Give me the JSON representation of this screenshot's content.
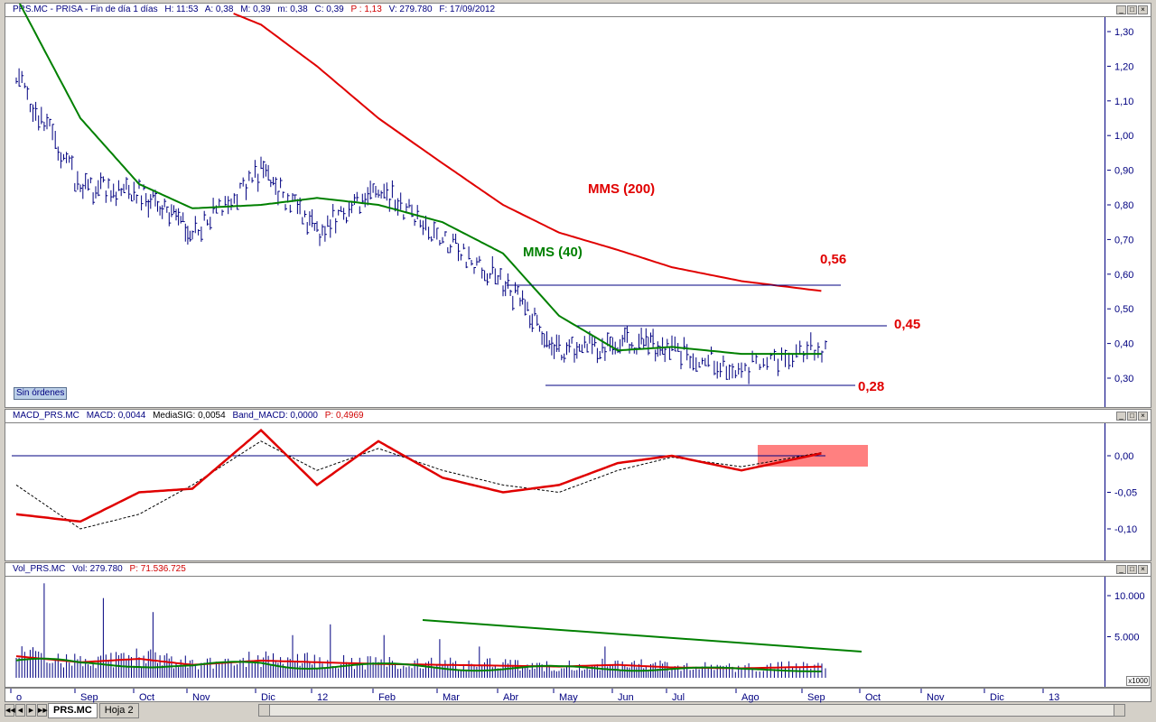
{
  "price_panel": {
    "header": {
      "symbol": "PRS.MC - PRISA - Fin de día 1 días",
      "time": "H: 11:53",
      "open": "A: 0,38",
      "high": "M: 0,39",
      "low": "m: 0,38",
      "close": "C: 0,39",
      "change": "P : 1,13",
      "volume": "V: 279.780",
      "date": "F: 17/09/2012"
    },
    "y_ticks": [
      "1,30",
      "1,20",
      "1,10",
      "1,00",
      "0,90",
      "0,80",
      "0,70",
      "0,60",
      "0,50",
      "0,40",
      "0,30"
    ],
    "annotations": {
      "mms200": "MMS (200)",
      "mms40": "MMS (40)",
      "level_056": "0,56",
      "level_045": "0,45",
      "level_028": "0,28"
    },
    "badge": "Sin órdenes"
  },
  "macd_panel": {
    "header": {
      "name": "MACD_PRS.MC",
      "macd": "MACD: 0,0044",
      "signal": "MediaSIG: 0,0054",
      "band": "Band_MACD: 0,0000",
      "p": "P: 0,4969"
    },
    "y_ticks": [
      "0,00",
      "-0,05",
      "-0,10"
    ]
  },
  "volume_panel": {
    "header": {
      "name": "Vol_PRS.MC",
      "vol": "Vol: 279.780",
      "p": "P: 71.536.725"
    },
    "y_ticks": [
      "10.000",
      "5.000"
    ],
    "scale_note": "x1000"
  },
  "time_axis": [
    "o",
    "Sep",
    "Oct",
    "Nov",
    "Dic",
    "12",
    "Feb",
    "Mar",
    "Abr",
    "May",
    "Jun",
    "Jul",
    "Ago",
    "Sep",
    "Oct",
    "Nov",
    "Dic",
    "13"
  ],
  "sheet_tabs": [
    "PRS.MC",
    "Hoja 2"
  ],
  "colors": {
    "price_bars": "#000080",
    "mms40": "#008000",
    "mms200": "#e00000",
    "macd": "#e00000",
    "signal": "#000000",
    "highlight": "#ff8080",
    "volume_trend": "#008000"
  },
  "chart_data": [
    {
      "type": "line",
      "title": "PRS.MC - PRISA",
      "x": [
        "o",
        "Sep",
        "Oct",
        "Nov",
        "Dic",
        "12",
        "Feb",
        "Mar",
        "Abr",
        "May",
        "Jun",
        "Jul",
        "Ago",
        "Sep"
      ],
      "series": [
        {
          "name": "PRS.MC",
          "values": [
            1.18,
            0.85,
            0.84,
            0.72,
            0.9,
            0.72,
            0.85,
            0.7,
            0.58,
            0.38,
            0.4,
            0.39,
            0.33,
            0.39
          ]
        },
        {
          "name": "MMS (40)",
          "values": [
            1.4,
            1.05,
            0.86,
            0.79,
            0.8,
            0.82,
            0.8,
            0.75,
            0.66,
            0.48,
            0.38,
            0.39,
            0.37,
            0.37
          ]
        },
        {
          "name": "MMS (200)",
          "values": [
            null,
            null,
            null,
            null,
            1.32,
            1.2,
            1.05,
            0.92,
            0.8,
            0.72,
            0.67,
            0.62,
            0.58,
            0.55
          ]
        }
      ],
      "levels": [
        0.56,
        0.45,
        0.28
      ],
      "ylim": [
        0.25,
        1.33
      ]
    },
    {
      "type": "line",
      "title": "MACD_PRS.MC",
      "x": [
        "o",
        "Sep",
        "Oct",
        "Nov",
        "Dic",
        "12",
        "Feb",
        "Mar",
        "Abr",
        "May",
        "Jun",
        "Jul",
        "Ago",
        "Sep"
      ],
      "series": [
        {
          "name": "MACD",
          "values": [
            -0.08,
            -0.09,
            -0.05,
            -0.045,
            0.035,
            -0.04,
            0.02,
            -0.03,
            -0.05,
            -0.04,
            -0.01,
            0.0,
            -0.02,
            0.0044
          ]
        },
        {
          "name": "MediaSIG",
          "values": [
            -0.04,
            -0.1,
            -0.08,
            -0.04,
            0.02,
            -0.02,
            0.01,
            -0.02,
            -0.04,
            -0.05,
            -0.02,
            -0.002,
            -0.015,
            0.0054
          ]
        }
      ],
      "ylim": [
        -0.14,
        0.04
      ]
    },
    {
      "type": "bar",
      "title": "Vol_PRS.MC",
      "x": [
        "o",
        "Sep",
        "Oct",
        "Nov",
        "Dic",
        "12",
        "Feb",
        "Mar",
        "Abr",
        "May",
        "Jun",
        "Jul",
        "Ago",
        "Sep"
      ],
      "values": [
        2500,
        1800,
        2200,
        1500,
        2000,
        1800,
        1600,
        1500,
        1400,
        1300,
        1500,
        1200,
        1100,
        1300
      ],
      "peaks": [
        11500,
        9700,
        8000,
        5200,
        6500,
        5200,
        4700,
        3800,
        3800
      ],
      "ylim": [
        0,
        12500
      ]
    }
  ]
}
